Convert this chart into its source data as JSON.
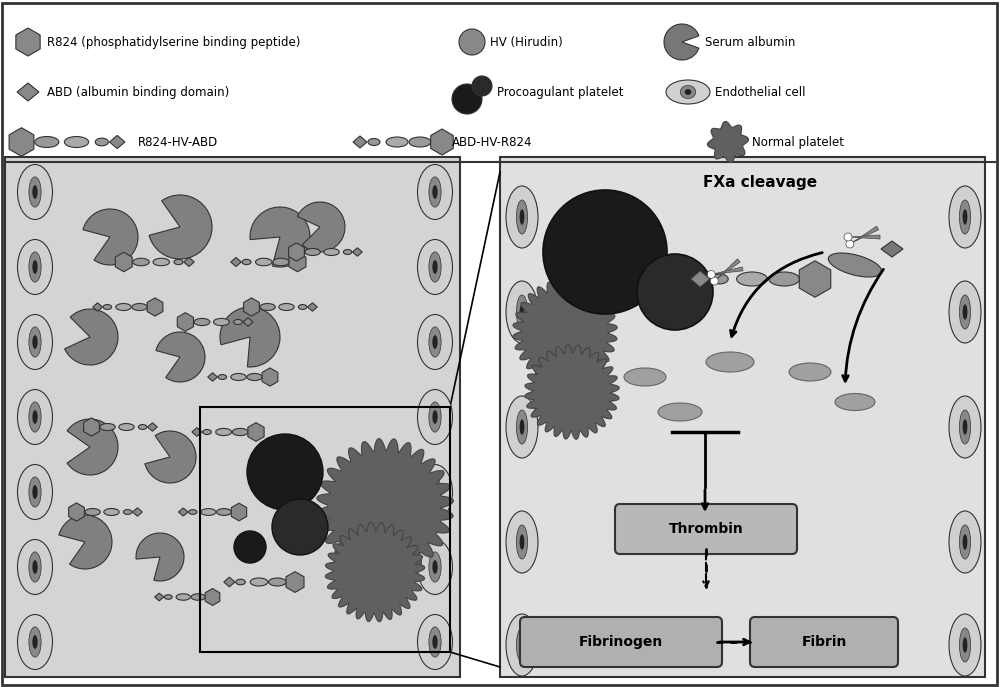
{
  "fig_width": 10.0,
  "fig_height": 6.87,
  "bg_color": "#ffffff",
  "left_panel_bg": "#d8d8d8",
  "right_panel_bg": "#e8e8e8",
  "dark_gray": "#404040",
  "mid_gray": "#808080",
  "light_gray": "#b0b0b0",
  "very_light_gray": "#c8c8c8",
  "platelet_dark": "#2a2a2a",
  "platelet_mid": "#505050",
  "normal_platelet_color": "#606060",
  "endothelial_color": "#d0d0d0",
  "legend_items": [
    "R824 (phosphatidylserine binding peptide)",
    "HV (Hirudin)",
    "Serum albumin",
    "ABD (albumin binding domain)",
    "Procoagulant platelet",
    "Endothelial cell",
    "R824-HV-ABD",
    "ABD-HV-R824",
    "Normal platelet"
  ]
}
